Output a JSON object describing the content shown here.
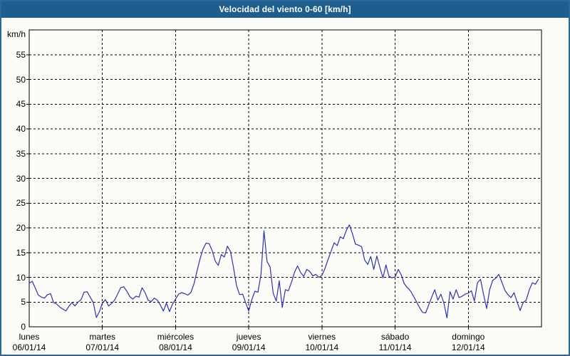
{
  "window": {
    "title": "Velocidad del viento 0-60 [km/h]"
  },
  "colors": {
    "titlebar_bg": "#1e5e8e",
    "titlebar_text": "#ffffff",
    "frame_border": "#28689a",
    "background": "#fcfdf8",
    "axis_and_grid": "#000000",
    "line": "#2f2fbe"
  },
  "chart_data": {
    "type": "line",
    "title": "Velocidad del viento 0-60 [km/h]",
    "ylabel": "km/h",
    "xlabel": "",
    "ylim": [
      0,
      60
    ],
    "y_ticks": [
      0,
      5,
      10,
      15,
      20,
      25,
      30,
      35,
      40,
      45,
      50,
      55
    ],
    "grid": "dashed, horizontal at every 5 km/h and vertical at each day boundary",
    "legend_position": "none",
    "samples_per_day": 24,
    "x_days": [
      {
        "name": "lunes",
        "date": "06/01/14"
      },
      {
        "name": "martes",
        "date": "07/01/14"
      },
      {
        "name": "miércoles",
        "date": "08/01/14"
      },
      {
        "name": "jueves",
        "date": "09/01/14"
      },
      {
        "name": "viernes",
        "date": "10/01/14"
      },
      {
        "name": "sábado",
        "date": "11/01/14"
      },
      {
        "name": "domingo",
        "date": "12/01/14"
      }
    ],
    "series": [
      {
        "name": "Velocidad del viento (km/h)",
        "values": [
          8.8,
          9.2,
          7.8,
          6.4,
          6.0,
          5.8,
          6.5,
          6.7,
          4.9,
          4.6,
          4.0,
          3.6,
          3.2,
          4.1,
          4.9,
          4.2,
          5.0,
          5.5,
          7.0,
          7.1,
          6.0,
          4.9,
          1.9,
          3.0,
          4.8,
          5.5,
          4.2,
          4.7,
          5.4,
          6.6,
          7.9,
          8.1,
          7.2,
          6.1,
          5.6,
          6.2,
          6.0,
          7.9,
          6.9,
          5.4,
          5.1,
          5.8,
          5.4,
          4.4,
          3.2,
          4.8,
          3.1,
          4.6,
          5.6,
          6.6,
          6.9,
          6.7,
          6.4,
          6.9,
          8.6,
          11.2,
          13.7,
          15.7,
          16.9,
          16.8,
          15.4,
          13.3,
          12.4,
          14.6,
          14.1,
          16.3,
          15.2,
          12.0,
          8.3,
          6.5,
          6.6,
          4.8,
          3.2,
          5.5,
          7.2,
          7.0,
          10.6,
          19.4,
          13.2,
          12.1,
          6.8,
          5.2,
          9.3,
          3.9,
          7.5,
          7.3,
          9.0,
          11.0,
          12.3,
          11.0,
          10.2,
          11.6,
          11.2,
          10.3,
          10.6,
          10.0,
          10.4,
          11.8,
          13.6,
          15.3,
          17.0,
          16.4,
          18.2,
          17.8,
          19.5,
          20.6,
          18.8,
          16.7,
          16.5,
          16.2,
          13.5,
          12.6,
          14.2,
          11.6,
          14.3,
          12.0,
          9.9,
          12.5,
          10.2,
          9.9,
          10.1,
          11.6,
          10.5,
          8.7,
          7.9,
          7.3,
          6.2,
          5.1,
          3.9,
          2.9,
          2.8,
          4.4,
          6.0,
          7.5,
          5.4,
          6.6,
          4.8,
          1.8,
          7.1,
          5.6,
          7.5,
          5.9,
          6.2,
          6.6,
          6.8,
          7.3,
          5.2,
          8.9,
          9.6,
          6.5,
          3.7,
          7.5,
          9.4,
          9.8,
          10.6,
          9.0,
          7.4,
          6.5,
          5.9,
          6.9,
          5.0,
          3.3,
          4.9,
          5.4,
          7.5,
          8.9,
          8.6,
          9.6
        ]
      }
    ]
  }
}
